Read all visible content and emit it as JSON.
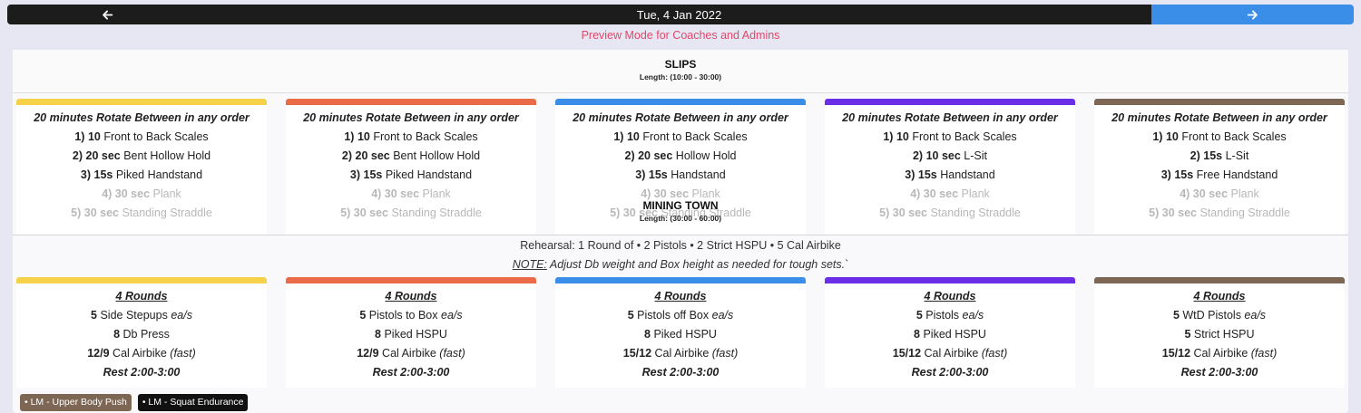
{
  "nav": {
    "date": "Tue, 4 Jan 2022",
    "prev_icon": "arrow-left-icon",
    "next_icon": "arrow-right-icon",
    "next_color": "#3a8ee8"
  },
  "preview_text": "Preview Mode for Coaches and Admins",
  "slips": {
    "title": "SLIPS",
    "length": "Length: (10:00 - 30:00)",
    "cards": [
      {
        "color": "#f6d24a",
        "head": "20 minutes Rotate Between in any order",
        "lines": [
          {
            "num": "1)",
            "qty": "10",
            "text": "Front to Back Scales"
          },
          {
            "num": "2)",
            "qty": "20 sec",
            "text": "Bent Hollow Hold"
          },
          {
            "num": "3)",
            "qty": "15s",
            "text": "Piked Handstand"
          },
          {
            "num": "4)",
            "qty": "30 sec",
            "text": "Plank"
          },
          {
            "num": "5)",
            "qty": "30 sec",
            "text": "Standing Straddle"
          }
        ]
      },
      {
        "color": "#e96b48",
        "head": "20 minutes Rotate Between in any order",
        "lines": [
          {
            "num": "1)",
            "qty": "10",
            "text": "Front to Back Scales"
          },
          {
            "num": "2)",
            "qty": "20 sec",
            "text": "Bent Hollow Hold"
          },
          {
            "num": "3)",
            "qty": "15s",
            "text": "Piked Handstand"
          },
          {
            "num": "4)",
            "qty": "30 sec",
            "text": "Plank"
          },
          {
            "num": "5)",
            "qty": "30 sec",
            "text": "Standing Straddle"
          }
        ]
      },
      {
        "color": "#3a8ee8",
        "head": "20 minutes Rotate Between in any order",
        "lines": [
          {
            "num": "1)",
            "qty": "10",
            "text": "Front to Back Scales"
          },
          {
            "num": "2)",
            "qty": "20 sec",
            "text": "Hollow Hold"
          },
          {
            "num": "3)",
            "qty": "15s",
            "text": "Handstand"
          },
          {
            "num": "4)",
            "qty": "30 sec",
            "text": "Plank"
          },
          {
            "num": "5)",
            "qty": "30 sec",
            "text": "Standing Straddle"
          }
        ]
      },
      {
        "color": "#6a2ee6",
        "head": "20 minutes Rotate Between in any order",
        "lines": [
          {
            "num": "1)",
            "qty": "10",
            "text": "Front to Back Scales"
          },
          {
            "num": "2)",
            "qty": "10 sec",
            "text": "L-Sit"
          },
          {
            "num": "3)",
            "qty": "15s",
            "text": "Handstand"
          },
          {
            "num": "4)",
            "qty": "30 sec",
            "text": "Plank"
          },
          {
            "num": "5)",
            "qty": "30 sec",
            "text": "Standing Straddle"
          }
        ]
      },
      {
        "color": "#7d6654",
        "head": "20 minutes Rotate Between in any order",
        "lines": [
          {
            "num": "1)",
            "qty": "10",
            "text": "Front to Back Scales"
          },
          {
            "num": "2)",
            "qty": "15s",
            "text": "L-Sit"
          },
          {
            "num": "3)",
            "qty": "15s",
            "text": "Free Handstand"
          },
          {
            "num": "4)",
            "qty": "30 sec",
            "text": "Plank"
          },
          {
            "num": "5)",
            "qty": "30 sec",
            "text": "Standing Straddle"
          }
        ]
      }
    ]
  },
  "mining_town": {
    "title": "MINING TOWN",
    "length": "Length: (30:00 - 60:00)",
    "rehearsal": "Rehearsal: 1 Round of • 2 Pistols • 2 Strict HSPU • 5 Cal Airbike",
    "note_label": "NOTE:",
    "note_text": " Adjust Db weight and Box height as needed for tough sets.`",
    "cards": [
      {
        "color": "#f6d24a",
        "head": "4 Rounds",
        "lines": [
          {
            "qty": "5",
            "text": "Side Stepups",
            "extra": "ea/s"
          },
          {
            "qty": "8",
            "text": "Db Press",
            "extra": ""
          },
          {
            "qty": "12/9",
            "text": "Cal Airbike",
            "extra": "(fast)"
          }
        ],
        "rest": "Rest 2:00-3:00"
      },
      {
        "color": "#e96b48",
        "head": "4 Rounds",
        "lines": [
          {
            "qty": "5",
            "text": "Pistols to Box",
            "extra": "ea/s"
          },
          {
            "qty": "8",
            "text": "Piked HSPU",
            "extra": ""
          },
          {
            "qty": "12/9",
            "text": "Cal Airbike",
            "extra": "(fast)"
          }
        ],
        "rest": "Rest 2:00-3:00"
      },
      {
        "color": "#3a8ee8",
        "head": "4 Rounds",
        "lines": [
          {
            "qty": "5",
            "text": "Pistols off Box",
            "extra": "ea/s"
          },
          {
            "qty": "8",
            "text": "Piked HSPU",
            "extra": ""
          },
          {
            "qty": "15/12",
            "text": "Cal Airbike",
            "extra": "(fast)"
          }
        ],
        "rest": "Rest 2:00-3:00"
      },
      {
        "color": "#6a2ee6",
        "head": "4 Rounds",
        "lines": [
          {
            "qty": "5",
            "text": "Pistols",
            "extra": "ea/s"
          },
          {
            "qty": "8",
            "text": "Piked HSPU",
            "extra": ""
          },
          {
            "qty": "15/12",
            "text": "Cal Airbike",
            "extra": "(fast)"
          }
        ],
        "rest": "Rest 2:00-3:00"
      },
      {
        "color": "#7d6654",
        "head": "4 Rounds",
        "lines": [
          {
            "qty": "5",
            "text": "WtD Pistols",
            "extra": "ea/s"
          },
          {
            "qty": "5",
            "text": "Strict HSPU",
            "extra": ""
          },
          {
            "qty": "15/12",
            "text": "Cal Airbike",
            "extra": "(fast)"
          }
        ],
        "rest": "Rest 2:00-3:00"
      }
    ]
  },
  "tags": [
    {
      "label": "• LM - Upper Body Push",
      "color": "#7d6654"
    },
    {
      "label": "• LM - Squat Endurance",
      "color": "#111111"
    }
  ]
}
